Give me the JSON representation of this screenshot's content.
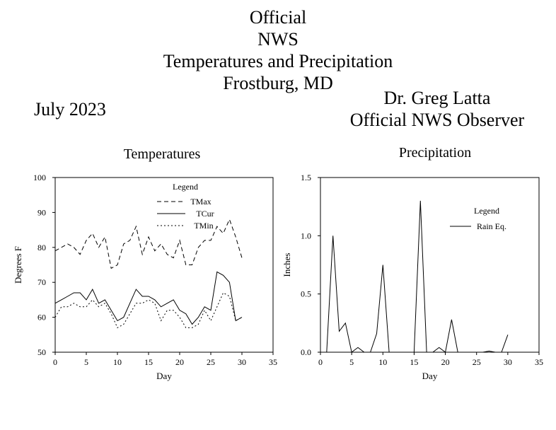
{
  "header": {
    "title_lines": [
      "Official",
      "NWS",
      "Temperatures and Precipitation",
      "Frostburg, MD"
    ],
    "month": "July 2023",
    "observer_name": "Dr. Greg Latta",
    "observer_title": "Official NWS Observer"
  },
  "chart_data": [
    {
      "type": "line",
      "title": "Temperatures",
      "xlabel": "Day",
      "ylabel": "Degrees F",
      "xlim": [
        0,
        35
      ],
      "ylim": [
        50,
        100
      ],
      "xticks": [
        0,
        5,
        10,
        15,
        20,
        25,
        30,
        35
      ],
      "yticks": [
        50,
        60,
        70,
        80,
        90,
        100
      ],
      "x_tick_labels": [
        "0",
        "5",
        "10",
        "15",
        "20",
        "25",
        "30",
        "35"
      ],
      "y_tick_labels": [
        "50",
        "60",
        "70",
        "80",
        "90",
        "100"
      ],
      "grid": false,
      "legend": {
        "title": "Legend",
        "position": "top-center"
      },
      "x": [
        0,
        1,
        2,
        3,
        4,
        5,
        6,
        7,
        8,
        9,
        10,
        11,
        12,
        13,
        14,
        15,
        16,
        17,
        18,
        19,
        20,
        21,
        22,
        23,
        24,
        25,
        26,
        27,
        28,
        29,
        30
      ],
      "series": [
        {
          "name": "TMax",
          "style": "dashed",
          "values": [
            79,
            80,
            81,
            80,
            78,
            82,
            84,
            80,
            83,
            74,
            75,
            81,
            82,
            86,
            78,
            83,
            79,
            81,
            78,
            77,
            82,
            75,
            75,
            80,
            82,
            82,
            86,
            84,
            88,
            83,
            77
          ]
        },
        {
          "name": "TCur",
          "style": "solid",
          "values": [
            64,
            65,
            66,
            67,
            67,
            65,
            68,
            64,
            65,
            62,
            59,
            60,
            64,
            68,
            66,
            66,
            65,
            63,
            64,
            65,
            62,
            61,
            58,
            60,
            63,
            62,
            73,
            72,
            70,
            59,
            60
          ]
        },
        {
          "name": "TMin",
          "style": "dotted",
          "values": [
            60,
            63,
            63,
            64,
            63,
            63,
            65,
            63,
            64,
            61,
            57,
            58,
            61,
            64,
            64,
            65,
            64,
            59,
            62,
            62,
            60,
            57,
            57,
            58,
            62,
            59,
            63,
            67,
            66,
            59,
            60
          ]
        }
      ]
    },
    {
      "type": "line",
      "title": "Precipitation",
      "xlabel": "Day",
      "ylabel": "Inches",
      "xlim": [
        0,
        35
      ],
      "ylim": [
        0,
        1.5
      ],
      "xticks": [
        0,
        5,
        10,
        15,
        20,
        25,
        30,
        35
      ],
      "yticks": [
        0,
        0.5,
        1.0,
        1.5
      ],
      "x_tick_labels": [
        "0",
        "5",
        "10",
        "15",
        "20",
        "25",
        "30",
        "35"
      ],
      "y_tick_labels": [
        "0.0",
        "0.5",
        "1.0",
        "1.5"
      ],
      "grid": false,
      "legend": {
        "title": "Legend",
        "position": "top-right"
      },
      "x": [
        1,
        2,
        3,
        4,
        5,
        6,
        7,
        8,
        9,
        10,
        11,
        12,
        13,
        14,
        15,
        16,
        17,
        18,
        19,
        20,
        21,
        22,
        23,
        24,
        25,
        26,
        27,
        28,
        29,
        30
      ],
      "series": [
        {
          "name": "Rain Eq.",
          "style": "solid",
          "values": [
            0.0,
            1.0,
            0.18,
            0.25,
            0.0,
            0.04,
            0.0,
            0.0,
            0.16,
            0.75,
            0.0,
            0.0,
            0.0,
            0.0,
            0.0,
            1.3,
            0.0,
            0.0,
            0.04,
            0.0,
            0.28,
            0.0,
            0.0,
            0.0,
            0.0,
            0.0,
            0.01,
            0.0,
            0.0,
            0.15
          ]
        }
      ]
    }
  ]
}
